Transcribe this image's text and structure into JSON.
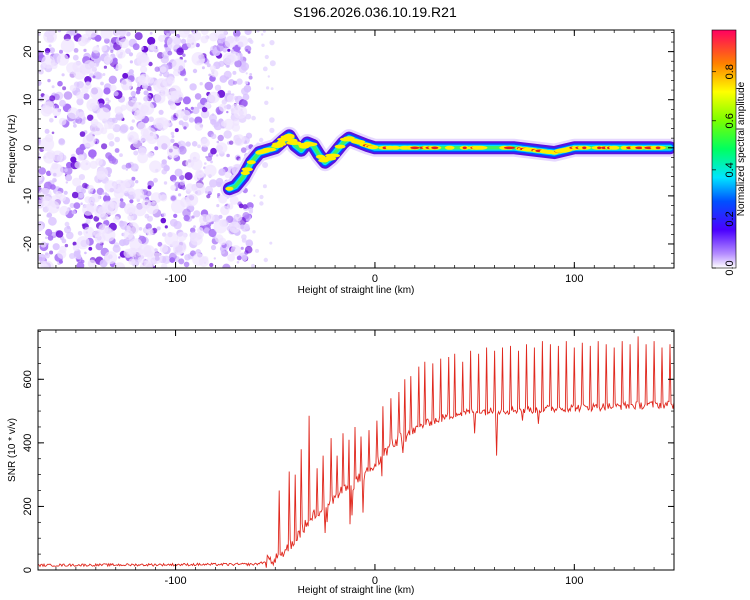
{
  "title": "S196.2026.036.10.19.R21",
  "colors": {
    "scatter": "#7a1fe0",
    "line": "#e0281e",
    "track_core": "#e01e1e",
    "axis": "#000000"
  },
  "colorbar": {
    "label": "Normalized spectral amplitude",
    "ticks": [
      "0.0",
      "0.2",
      "0.4",
      "0.6",
      "0.8"
    ],
    "range": [
      0,
      0.97
    ]
  },
  "chart_data": [
    {
      "type": "heatmap",
      "xlabel": "Height of straight line (km)",
      "ylabel": "Frequency (Hz)",
      "xlim": [
        -169,
        150
      ],
      "ylim": [
        -25,
        24.5
      ],
      "xticks": [
        -100,
        0,
        100
      ],
      "yticks": [
        -20,
        -10,
        0,
        10,
        20
      ],
      "noise_region_x": [
        -169,
        -66
      ],
      "track": {
        "x": [
          -73,
          -70,
          -66,
          -62,
          -58,
          -54,
          -50,
          -46,
          -43,
          -40,
          -37,
          -34,
          -31,
          -28,
          -25,
          -22,
          -19,
          -16,
          -13,
          -10,
          -7,
          -4,
          0,
          10,
          20,
          30,
          40,
          50,
          60,
          70,
          80,
          90,
          95,
          100,
          110,
          120,
          130,
          140,
          148
        ],
        "y": [
          -8.5,
          -8,
          -6,
          -3,
          -1,
          -0.5,
          0,
          1.5,
          2.5,
          0.5,
          -0.5,
          1,
          0.5,
          -1.5,
          -3,
          -2,
          -0.5,
          1,
          2,
          1.5,
          1,
          0.5,
          0,
          0,
          0,
          0,
          0,
          0,
          0,
          0,
          -0.5,
          -1,
          -0.5,
          0,
          0,
          0,
          0,
          0,
          0
        ]
      }
    },
    {
      "type": "line",
      "xlabel": "Height of straight line (km)",
      "ylabel": "SNR (10 * v/v)",
      "xlim": [
        -169,
        150
      ],
      "ylim": [
        0,
        755
      ],
      "xticks": [
        -100,
        0,
        100
      ],
      "yticks": [
        0,
        200,
        400,
        600
      ],
      "baseline": {
        "x": [
          -169,
          -60,
          -52,
          -45,
          -40,
          -35,
          -30,
          -25,
          -20,
          -15,
          -10,
          -5,
          0,
          5,
          10,
          15,
          20,
          25,
          30,
          35,
          40,
          50,
          60,
          80,
          100,
          120,
          140,
          150
        ],
        "y": [
          15,
          18,
          30,
          60,
          100,
          140,
          175,
          205,
          230,
          250,
          275,
          300,
          330,
          370,
          405,
          420,
          440,
          460,
          470,
          480,
          490,
          498,
          500,
          505,
          510,
          515,
          520,
          520
        ]
      },
      "spikes": [
        {
          "x": -48,
          "y": 250
        },
        {
          "x": -43,
          "y": 310
        },
        {
          "x": -40,
          "y": 300
        },
        {
          "x": -37,
          "y": 380
        },
        {
          "x": -33,
          "y": 485
        },
        {
          "x": -29,
          "y": 320
        },
        {
          "x": -26,
          "y": 360
        },
        {
          "x": -22,
          "y": 415
        },
        {
          "x": -19,
          "y": 360
        },
        {
          "x": -16,
          "y": 430
        },
        {
          "x": -13,
          "y": 410
        },
        {
          "x": -10,
          "y": 450
        },
        {
          "x": -7,
          "y": 420
        },
        {
          "x": -3,
          "y": 440
        },
        {
          "x": 1,
          "y": 470
        },
        {
          "x": 4,
          "y": 515
        },
        {
          "x": 8,
          "y": 540
        },
        {
          "x": 12,
          "y": 560
        },
        {
          "x": 15,
          "y": 600
        },
        {
          "x": 18,
          "y": 610
        },
        {
          "x": 22,
          "y": 640
        },
        {
          "x": 25,
          "y": 655
        },
        {
          "x": 29,
          "y": 650
        },
        {
          "x": 33,
          "y": 665
        },
        {
          "x": 37,
          "y": 670
        },
        {
          "x": 40,
          "y": 680
        },
        {
          "x": 44,
          "y": 655
        },
        {
          "x": 48,
          "y": 690
        },
        {
          "x": 52,
          "y": 680
        },
        {
          "x": 56,
          "y": 700
        },
        {
          "x": 60,
          "y": 690
        },
        {
          "x": 64,
          "y": 700
        },
        {
          "x": 68,
          "y": 705
        },
        {
          "x": 72,
          "y": 690
        },
        {
          "x": 76,
          "y": 710
        },
        {
          "x": 80,
          "y": 700
        },
        {
          "x": 84,
          "y": 720
        },
        {
          "x": 88,
          "y": 710
        },
        {
          "x": 92,
          "y": 705
        },
        {
          "x": 96,
          "y": 720
        },
        {
          "x": 100,
          "y": 700
        },
        {
          "x": 104,
          "y": 715
        },
        {
          "x": 108,
          "y": 705
        },
        {
          "x": 112,
          "y": 720
        },
        {
          "x": 116,
          "y": 710
        },
        {
          "x": 120,
          "y": 700
        },
        {
          "x": 124,
          "y": 720
        },
        {
          "x": 128,
          "y": 710
        },
        {
          "x": 132,
          "y": 735
        },
        {
          "x": 136,
          "y": 710
        },
        {
          "x": 140,
          "y": 720
        },
        {
          "x": 144,
          "y": 700
        },
        {
          "x": 148,
          "y": 710
        }
      ],
      "dips": [
        {
          "x": 61,
          "y": 360
        },
        {
          "x": 50,
          "y": 430
        },
        {
          "x": 82,
          "y": 460
        },
        {
          "x": 74,
          "y": 470
        }
      ]
    }
  ]
}
